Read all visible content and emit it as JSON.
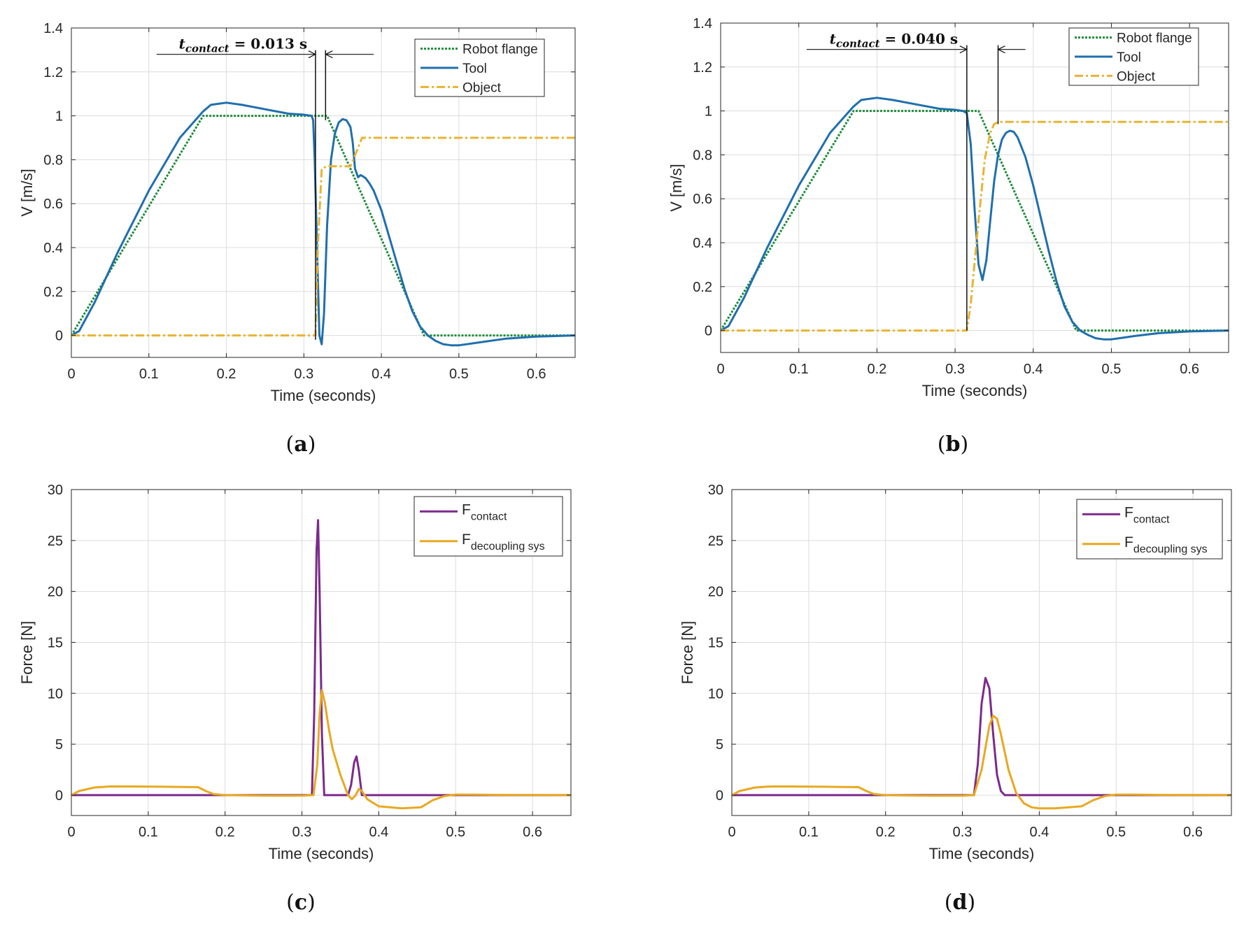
{
  "figure": {
    "panels": [
      {
        "caption_letter": "a"
      },
      {
        "caption_letter": "b"
      },
      {
        "caption_letter": "c"
      },
      {
        "caption_letter": "d"
      }
    ]
  },
  "chart_data": [
    {
      "id": "a",
      "type": "line",
      "xlabel": "Time (seconds)",
      "ylabel": "V [m/s]",
      "xlim": [
        0,
        0.65
      ],
      "ylim": [
        -0.1,
        1.4
      ],
      "xticks": [
        0,
        0.1,
        0.2,
        0.3,
        0.4,
        0.5,
        0.6
      ],
      "xtick_labels": [
        "0",
        "0.1",
        "0.2",
        "0.3",
        "0.4",
        "0.5",
        "0.6"
      ],
      "yticks": [
        0,
        0.2,
        0.4,
        0.6,
        0.8,
        1.0,
        1.2,
        1.4
      ],
      "ytick_labels": [
        "0",
        "0.2",
        "0.4",
        "0.6",
        "0.8",
        "1",
        "1.2",
        "1.4"
      ],
      "grid": true,
      "legend_position": "top-right",
      "annotation": {
        "label_main": "t",
        "label_sub": "contact",
        "label_value": " = 0.013 s",
        "t_start": 0.315,
        "t_end": 0.328,
        "y": 1.28
      },
      "series": [
        {
          "name": "Robot flange",
          "color": "#1e8c3a",
          "style": "dotted",
          "x": [
            0,
            0.17,
            0.33,
            0.455,
            0.65
          ],
          "y": [
            0,
            1.0,
            1.0,
            0,
            0
          ]
        },
        {
          "name": "Tool",
          "color": "#1f6fae",
          "style": "solid",
          "x": [
            0,
            0.01,
            0.03,
            0.06,
            0.1,
            0.14,
            0.17,
            0.18,
            0.2,
            0.22,
            0.25,
            0.28,
            0.3,
            0.31,
            0.312,
            0.314,
            0.317,
            0.32,
            0.323,
            0.326,
            0.33,
            0.335,
            0.34,
            0.345,
            0.35,
            0.355,
            0.36,
            0.363,
            0.366,
            0.37,
            0.373,
            0.376,
            0.38,
            0.385,
            0.39,
            0.4,
            0.41,
            0.42,
            0.43,
            0.44,
            0.45,
            0.46,
            0.47,
            0.48,
            0.49,
            0.5,
            0.51,
            0.53,
            0.56,
            0.6,
            0.65
          ],
          "y": [
            0,
            0.02,
            0.15,
            0.38,
            0.66,
            0.9,
            1.02,
            1.05,
            1.06,
            1.05,
            1.03,
            1.01,
            1.005,
            1.0,
            0.98,
            0.8,
            0.4,
            0.0,
            -0.04,
            0.1,
            0.5,
            0.8,
            0.92,
            0.97,
            0.985,
            0.98,
            0.95,
            0.88,
            0.76,
            0.72,
            0.73,
            0.725,
            0.715,
            0.69,
            0.66,
            0.57,
            0.45,
            0.33,
            0.21,
            0.11,
            0.04,
            0.0,
            -0.025,
            -0.04,
            -0.045,
            -0.045,
            -0.04,
            -0.03,
            -0.015,
            -0.005,
            0
          ]
        },
        {
          "name": "Object",
          "color": "#e8b430",
          "style": "dashdot",
          "x": [
            0,
            0.315,
            0.318,
            0.323,
            0.33,
            0.36,
            0.366,
            0.375,
            0.65
          ],
          "y": [
            0,
            0,
            0.4,
            0.76,
            0.77,
            0.77,
            0.82,
            0.9,
            0.9
          ]
        }
      ]
    },
    {
      "id": "b",
      "type": "line",
      "xlabel": "Time (seconds)",
      "ylabel": "V [m/s]",
      "xlim": [
        0,
        0.65
      ],
      "ylim": [
        -0.1,
        1.4
      ],
      "xticks": [
        0,
        0.1,
        0.2,
        0.3,
        0.4,
        0.5,
        0.6
      ],
      "xtick_labels": [
        "0",
        "0.1",
        "0.2",
        "0.3",
        "0.4",
        "0.5",
        "0.6"
      ],
      "yticks": [
        0,
        0.2,
        0.4,
        0.6,
        0.8,
        1.0,
        1.2,
        1.4
      ],
      "ytick_labels": [
        "0",
        "0.2",
        "0.4",
        "0.6",
        "0.8",
        "1",
        "1.2",
        "1.4"
      ],
      "grid": true,
      "legend_position": "top-right",
      "annotation": {
        "label_main": "t",
        "label_sub": "contact",
        "label_value": " = 0.040 s",
        "t_start": 0.315,
        "t_end": 0.355,
        "y": 1.28
      },
      "series": [
        {
          "name": "Robot flange",
          "color": "#1e8c3a",
          "style": "dotted",
          "x": [
            0,
            0.17,
            0.33,
            0.455,
            0.65
          ],
          "y": [
            0,
            1.0,
            1.0,
            0,
            0
          ]
        },
        {
          "name": "Tool",
          "color": "#1f6fae",
          "style": "solid",
          "x": [
            0,
            0.01,
            0.03,
            0.06,
            0.1,
            0.14,
            0.17,
            0.18,
            0.2,
            0.22,
            0.25,
            0.28,
            0.3,
            0.31,
            0.315,
            0.32,
            0.325,
            0.33,
            0.335,
            0.34,
            0.345,
            0.35,
            0.355,
            0.36,
            0.365,
            0.37,
            0.375,
            0.38,
            0.39,
            0.4,
            0.41,
            0.42,
            0.43,
            0.44,
            0.45,
            0.46,
            0.47,
            0.48,
            0.49,
            0.5,
            0.51,
            0.53,
            0.56,
            0.6,
            0.65
          ],
          "y": [
            0,
            0.02,
            0.15,
            0.38,
            0.66,
            0.9,
            1.02,
            1.05,
            1.06,
            1.05,
            1.03,
            1.01,
            1.005,
            1.0,
            0.99,
            0.85,
            0.55,
            0.3,
            0.23,
            0.32,
            0.5,
            0.68,
            0.8,
            0.87,
            0.9,
            0.91,
            0.905,
            0.88,
            0.79,
            0.66,
            0.51,
            0.36,
            0.22,
            0.11,
            0.04,
            0.0,
            -0.02,
            -0.035,
            -0.04,
            -0.04,
            -0.035,
            -0.025,
            -0.012,
            -0.004,
            0
          ]
        },
        {
          "name": "Object",
          "color": "#e8b430",
          "style": "dashdot",
          "x": [
            0,
            0.315,
            0.32,
            0.33,
            0.338,
            0.345,
            0.35,
            0.355,
            0.65
          ],
          "y": [
            0,
            0,
            0.12,
            0.5,
            0.78,
            0.9,
            0.94,
            0.95,
            0.95
          ]
        }
      ]
    },
    {
      "id": "c",
      "type": "line",
      "xlabel": "Time (seconds)",
      "ylabel": "Force [N]",
      "xlim": [
        0,
        0.65
      ],
      "ylim": [
        -2,
        30
      ],
      "xticks": [
        0,
        0.1,
        0.2,
        0.3,
        0.4,
        0.5,
        0.6
      ],
      "xtick_labels": [
        "0",
        "0.1",
        "0.2",
        "0.3",
        "0.4",
        "0.5",
        "0.6"
      ],
      "yticks": [
        0,
        5,
        10,
        15,
        20,
        25,
        30
      ],
      "ytick_labels": [
        "0",
        "5",
        "10",
        "15",
        "20",
        "25",
        "30"
      ],
      "grid": true,
      "legend_position": "top-right",
      "series": [
        {
          "name_main": "F",
          "name_sub": "contact",
          "color": "#7b2a8c",
          "style": "solid",
          "x": [
            0,
            0.313,
            0.316,
            0.319,
            0.321,
            0.323,
            0.326,
            0.329,
            0.36,
            0.364,
            0.368,
            0.371,
            0.374,
            0.378,
            0.65
          ],
          "y": [
            0,
            0,
            8,
            24,
            27,
            20,
            6,
            0,
            0,
            1,
            3.2,
            3.8,
            2.5,
            0,
            0
          ]
        },
        {
          "name_main": "F",
          "name_sub": "decoupling sys",
          "color": "#e8a820",
          "style": "solid",
          "x": [
            0,
            0.01,
            0.03,
            0.05,
            0.08,
            0.12,
            0.165,
            0.175,
            0.185,
            0.2,
            0.25,
            0.3,
            0.315,
            0.32,
            0.323,
            0.326,
            0.33,
            0.335,
            0.34,
            0.35,
            0.36,
            0.365,
            0.37,
            0.374,
            0.378,
            0.385,
            0.4,
            0.43,
            0.455,
            0.47,
            0.485,
            0.5,
            0.52,
            0.56,
            0.6,
            0.65
          ],
          "y": [
            0,
            0.4,
            0.75,
            0.85,
            0.85,
            0.82,
            0.78,
            0.4,
            0.1,
            0.0,
            -0.05,
            -0.05,
            0,
            3,
            8,
            10.3,
            9,
            6.5,
            4.5,
            2,
            0,
            -0.4,
            0,
            0.6,
            0.4,
            -0.4,
            -1.1,
            -1.3,
            -1.2,
            -0.5,
            -0.1,
            0.05,
            0.05,
            0.02,
            0.01,
            0
          ]
        }
      ]
    },
    {
      "id": "d",
      "type": "line",
      "xlabel": "Time (seconds)",
      "ylabel": "Force [N]",
      "xlim": [
        0,
        0.65
      ],
      "ylim": [
        -2,
        30
      ],
      "xticks": [
        0,
        0.1,
        0.2,
        0.3,
        0.4,
        0.5,
        0.6
      ],
      "xtick_labels": [
        "0",
        "0.1",
        "0.2",
        "0.3",
        "0.4",
        "0.5",
        "0.6"
      ],
      "yticks": [
        0,
        5,
        10,
        15,
        20,
        25,
        30
      ],
      "ytick_labels": [
        "0",
        "5",
        "10",
        "15",
        "20",
        "25",
        "30"
      ],
      "grid": true,
      "legend_position": "top-right",
      "series": [
        {
          "name_main": "F",
          "name_sub": "contact",
          "color": "#7b2a8c",
          "style": "solid",
          "x": [
            0,
            0.315,
            0.32,
            0.325,
            0.33,
            0.335,
            0.34,
            0.345,
            0.35,
            0.355,
            0.65
          ],
          "y": [
            0,
            0,
            3,
            9,
            11.5,
            10.5,
            6,
            2,
            0.4,
            0,
            0
          ]
        },
        {
          "name_main": "F",
          "name_sub": "decoupling sys",
          "color": "#e8a820",
          "style": "solid",
          "x": [
            0,
            0.01,
            0.03,
            0.05,
            0.08,
            0.12,
            0.165,
            0.175,
            0.185,
            0.2,
            0.25,
            0.3,
            0.315,
            0.325,
            0.335,
            0.34,
            0.345,
            0.35,
            0.36,
            0.37,
            0.38,
            0.39,
            0.4,
            0.42,
            0.455,
            0.47,
            0.485,
            0.5,
            0.52,
            0.56,
            0.6,
            0.65
          ],
          "y": [
            0,
            0.4,
            0.75,
            0.85,
            0.85,
            0.82,
            0.78,
            0.4,
            0.1,
            0.0,
            -0.05,
            -0.05,
            0,
            2.5,
            6.8,
            7.8,
            7.5,
            6,
            2.5,
            0.2,
            -0.8,
            -1.2,
            -1.3,
            -1.3,
            -1.1,
            -0.5,
            -0.1,
            0.05,
            0.05,
            0.02,
            0.01,
            0
          ]
        }
      ]
    }
  ]
}
